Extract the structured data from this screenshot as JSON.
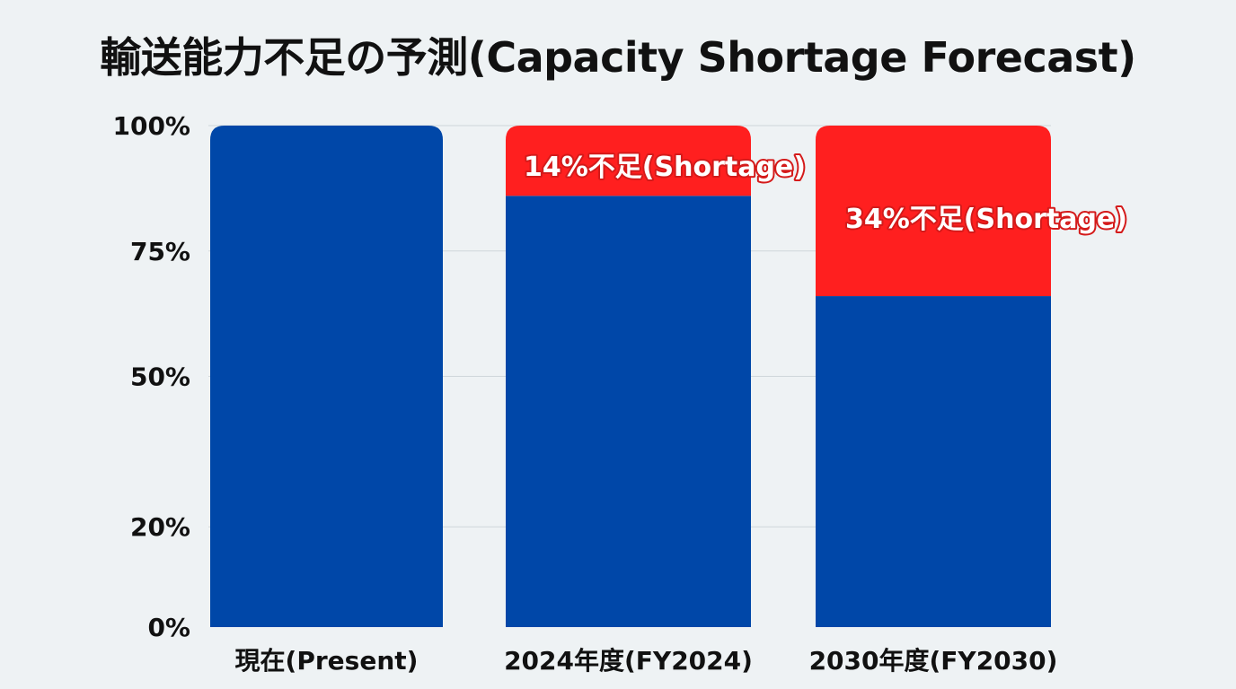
{
  "chart_data": {
    "type": "bar",
    "stacked": true,
    "title": "輸送能力不足の予測(Capacity Shortage Forecast)",
    "xlabel": "",
    "ylabel": "",
    "ylim": [
      0,
      100
    ],
    "yticks": [
      0,
      20,
      50,
      75,
      100
    ],
    "ytick_labels": [
      "0%",
      "20%",
      "50%",
      "75%",
      "100%"
    ],
    "grid": true,
    "categories": [
      "現在(Present)",
      "2024年度(FY2024)",
      "2030年度(FY2030)"
    ],
    "series": [
      {
        "values": [
          100,
          86,
          66
        ],
        "color": "#0047a8"
      },
      {
        "values": [
          0,
          14,
          34
        ],
        "color": "#ff1f1f"
      }
    ],
    "data_labels": [
      "",
      "14%不足(Shortage)",
      "34%不足(Shortage)"
    ]
  }
}
